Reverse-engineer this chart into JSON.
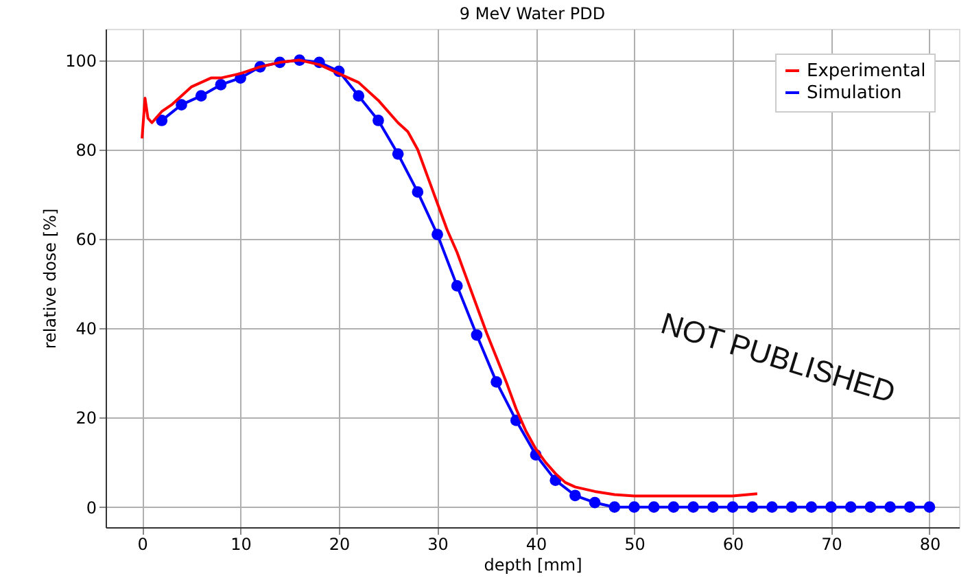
{
  "chart_data": {
    "type": "line",
    "title": "9 MeV Water PDD",
    "xlabel": "depth [mm]",
    "ylabel": "relative dose [%]",
    "xlim": [
      -3.7,
      83
    ],
    "ylim": [
      -4.5,
      107
    ],
    "xticks": [
      0,
      10,
      20,
      30,
      40,
      50,
      60,
      70,
      80
    ],
    "yticks": [
      0,
      20,
      40,
      60,
      80,
      100
    ],
    "grid": true,
    "legend": "top right",
    "line_style": "solid",
    "annotations": [
      "NOT PUBLISHED"
    ],
    "series": [
      {
        "name": "Experimental",
        "color": "#ff0000",
        "marker": "none",
        "x": [
          0,
          0.3,
          0.6,
          1,
          2,
          3,
          4,
          5,
          6,
          7,
          8,
          10,
          12,
          14,
          16,
          18,
          20,
          22,
          24,
          26,
          27,
          28,
          29,
          30,
          31,
          32,
          33,
          34,
          35,
          36,
          37,
          38,
          39,
          40,
          41,
          42,
          43,
          44,
          46,
          48,
          50,
          55,
          60,
          62.5
        ],
        "values": [
          82.5,
          91.5,
          87,
          86,
          88.5,
          90,
          92,
          94,
          95,
          96,
          96,
          97,
          98.5,
          99.5,
          100,
          99,
          97,
          95,
          91,
          86,
          84,
          80,
          74,
          68,
          62,
          57,
          51,
          45,
          39,
          33.5,
          28,
          22,
          17,
          13,
          10,
          7.5,
          5.5,
          4.5,
          3.5,
          2.8,
          2.5,
          2.5,
          2.5,
          3
        ]
      },
      {
        "name": "Simulation",
        "color": "#0000ff",
        "marker": "circle",
        "x": [
          2,
          4,
          6,
          8,
          10,
          12,
          14,
          16,
          18,
          20,
          22,
          24,
          26,
          28,
          30,
          32,
          34,
          36,
          38,
          40,
          42,
          44,
          46,
          48,
          50,
          52,
          54,
          56,
          58,
          60,
          62,
          64,
          66,
          68,
          70,
          72,
          74,
          76,
          78,
          80
        ],
        "values": [
          86.5,
          90,
          92,
          94.5,
          96,
          98.5,
          99.5,
          100,
          99.5,
          97.5,
          92,
          86.5,
          79,
          70.5,
          61,
          49.5,
          38.5,
          28,
          19.4,
          11.7,
          6,
          2.6,
          1,
          0,
          0,
          0,
          0,
          0,
          0,
          0,
          0,
          0,
          0,
          0,
          0,
          0,
          0,
          0,
          0,
          0
        ]
      }
    ]
  }
}
